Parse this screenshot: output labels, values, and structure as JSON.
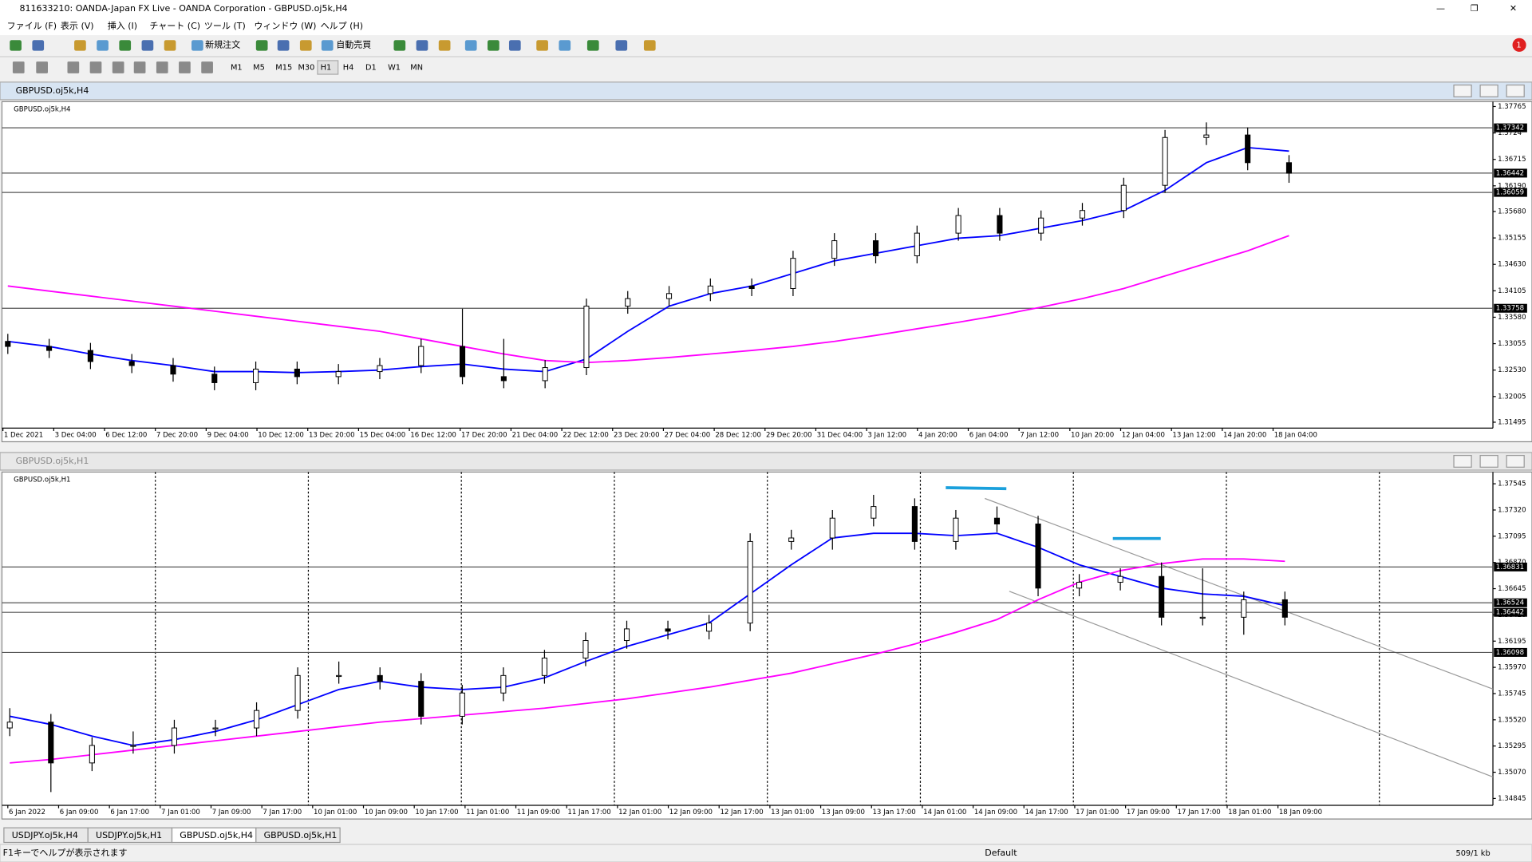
{
  "window": {
    "title": "811633210: OANDA-Japan FX Live - OANDA Corporation - GBPUSD.oj5k,H4"
  },
  "menu": [
    "ファイル (F)",
    "表示 (V)",
    "挿入 (I)",
    "チャート (C)",
    "ツール (T)",
    "ウィンドウ (W)",
    "ヘルプ (H)"
  ],
  "toolbar": {
    "new_order": "新規注文",
    "auto_trading": "自動売買",
    "timeframes": [
      "M1",
      "M5",
      "M15",
      "M30",
      "H1",
      "H4",
      "D1",
      "W1",
      "MN"
    ]
  },
  "chart_data": [
    {
      "type": "candlestick",
      "window_title": "GBPUSD.oj5k,H4",
      "title": "GBPUSD.oj5k,H4",
      "ylim": [
        1.31495,
        1.37765
      ],
      "yticks": [
        1.37765,
        1.3724,
        {
          "value": 1.36715,
          "label": "1.36715"
        },
        {
          "value": 1.3619,
          "label": "1.36190"
        },
        {
          "value": 1.3568,
          "label": "1.35680"
        },
        1.35155,
        {
          "value": 1.3463,
          "label": "1.34630"
        },
        1.34105,
        {
          "value": 1.3358,
          "label": "1.33580"
        },
        1.33055,
        {
          "value": 1.3253,
          "label": "1.32530"
        },
        1.32005,
        1.31495
      ],
      "price_lines": [
        1.37342,
        1.36442,
        1.36059,
        1.33758
      ],
      "x_labels": [
        "1 Dec 2021",
        "3 Dec 04:00",
        "6 Dec 12:00",
        "7 Dec 20:00",
        "9 Dec 04:00",
        "10 Dec 12:00",
        "13 Dec 20:00",
        "15 Dec 04:00",
        "16 Dec 12:00",
        "17 Dec 20:00",
        "21 Dec 04:00",
        "22 Dec 12:00",
        "23 Dec 20:00",
        "27 Dec 04:00",
        "28 Dec 12:00",
        "29 Dec 20:00",
        "31 Dec 04:00",
        "3 Jan 12:00",
        "4 Jan 20:00",
        "6 Jan 04:00",
        "7 Jan 12:00",
        "10 Jan 20:00",
        "12 Jan 04:00",
        "13 Jan 12:00",
        "14 Jan 20:00",
        "18 Jan 04:00"
      ],
      "open": [
        1.331,
        1.33,
        1.3292,
        1.327,
        1.3262,
        1.3245,
        1.3228,
        1.3255,
        1.324,
        1.325,
        1.3262,
        1.33,
        1.324,
        1.3232,
        1.3258,
        1.338,
        1.3395,
        1.3405,
        1.342,
        1.3415,
        1.3475,
        1.351,
        1.348,
        1.3525,
        1.356,
        1.3525,
        1.3555,
        1.357,
        1.362,
        1.3715,
        1.372,
        1.3665
      ],
      "high": [
        1.3325,
        1.3315,
        1.3307,
        1.3285,
        1.3277,
        1.326,
        1.327,
        1.327,
        1.3265,
        1.3277,
        1.3315,
        1.3375,
        1.3315,
        1.3273,
        1.3395,
        1.341,
        1.342,
        1.3435,
        1.3435,
        1.349,
        1.3525,
        1.3525,
        1.354,
        1.3575,
        1.3575,
        1.357,
        1.3585,
        1.3635,
        1.373,
        1.3745,
        1.3735,
        1.368
      ],
      "low": [
        1.3285,
        1.3277,
        1.3255,
        1.3247,
        1.323,
        1.3213,
        1.3213,
        1.3225,
        1.3225,
        1.3235,
        1.3247,
        1.3225,
        1.3217,
        1.3217,
        1.3243,
        1.3365,
        1.338,
        1.339,
        1.34,
        1.34,
        1.346,
        1.3465,
        1.3465,
        1.351,
        1.351,
        1.351,
        1.354,
        1.3555,
        1.3605,
        1.37,
        1.365,
        1.3625
      ],
      "close": [
        1.33,
        1.3292,
        1.327,
        1.3262,
        1.3245,
        1.3228,
        1.3255,
        1.324,
        1.325,
        1.3262,
        1.33,
        1.324,
        1.3232,
        1.3258,
        1.338,
        1.3395,
        1.3405,
        1.342,
        1.3415,
        1.3475,
        1.351,
        1.348,
        1.3525,
        1.356,
        1.3525,
        1.3555,
        1.357,
        1.362,
        1.3715,
        1.372,
        1.3665,
        1.3644
      ],
      "ma_lines": [
        {
          "color": "#0000ff",
          "values": [
            1.331,
            1.33,
            1.3285,
            1.3272,
            1.3262,
            1.325,
            1.325,
            1.3248,
            1.325,
            1.3253,
            1.326,
            1.3265,
            1.3255,
            1.325,
            1.3275,
            1.333,
            1.338,
            1.3405,
            1.342,
            1.3445,
            1.347,
            1.3485,
            1.35,
            1.3515,
            1.352,
            1.3535,
            1.355,
            1.357,
            1.361,
            1.3665,
            1.3695,
            1.3688
          ]
        },
        {
          "color": "#ff00ff",
          "values": [
            1.342,
            1.341,
            1.34,
            1.339,
            1.338,
            1.337,
            1.336,
            1.335,
            1.334,
            1.333,
            1.3315,
            1.33,
            1.3285,
            1.3272,
            1.3268,
            1.3272,
            1.3278,
            1.3285,
            1.3292,
            1.33,
            1.331,
            1.3322,
            1.3335,
            1.3348,
            1.3362,
            1.3378,
            1.3395,
            1.3415,
            1.344,
            1.3465,
            1.349,
            1.352
          ]
        }
      ]
    },
    {
      "type": "candlestick",
      "window_title": "GBPUSD.oj5k,H1",
      "title": "GBPUSD.oj5k,H1",
      "ylim": [
        1.34845,
        1.37545
      ],
      "yticks": [
        1.37545,
        {
          "value": 1.3732,
          "label": "1.37320"
        },
        1.37095,
        {
          "value": 1.3687,
          "label": "1.36870"
        },
        1.36645,
        {
          "value": 1.3642,
          "label": "1.36420"
        },
        1.36195,
        {
          "value": 1.3597,
          "label": "1.35970"
        },
        1.35745,
        {
          "value": 1.3552,
          "label": "1.35520"
        },
        1.35295,
        {
          "value": 1.3507,
          "label": "1.35070"
        },
        1.34845
      ],
      "price_lines": [
        1.36831,
        1.36524,
        1.36442,
        1.36098
      ],
      "x_labels": [
        "6 Jan 2022",
        "6 Jan 09:00",
        "6 Jan 17:00",
        "7 Jan 01:00",
        "7 Jan 09:00",
        "7 Jan 17:00",
        "10 Jan 01:00",
        "10 Jan 09:00",
        "10 Jan 17:00",
        "11 Jan 01:00",
        "11 Jan 09:00",
        "11 Jan 17:00",
        "12 Jan 01:00",
        "12 Jan 09:00",
        "12 Jan 17:00",
        "13 Jan 01:00",
        "13 Jan 09:00",
        "13 Jan 17:00",
        "14 Jan 01:00",
        "14 Jan 09:00",
        "14 Jan 17:00",
        "17 Jan 01:00",
        "17 Jan 09:00",
        "17 Jan 17:00",
        "18 Jan 01:00",
        "18 Jan 09:00"
      ],
      "open": [
        1.3545,
        1.355,
        1.3515,
        1.353,
        1.353,
        1.3545,
        1.3545,
        1.356,
        1.359,
        1.359,
        1.3585,
        1.3555,
        1.3575,
        1.359,
        1.3605,
        1.362,
        1.363,
        1.3628,
        1.3635,
        1.3705,
        1.3708,
        1.3725,
        1.3735,
        1.3705,
        1.3725,
        1.372,
        1.3665,
        1.367,
        1.3675,
        1.364,
        1.364,
        1.3655
      ],
      "high": [
        1.3562,
        1.3557,
        1.3537,
        1.3542,
        1.3552,
        1.3552,
        1.3567,
        1.3597,
        1.3602,
        1.3597,
        1.3592,
        1.3582,
        1.3597,
        1.3612,
        1.3627,
        1.3637,
        1.3637,
        1.3642,
        1.3712,
        1.3715,
        1.3732,
        1.3745,
        1.3742,
        1.3732,
        1.3735,
        1.3727,
        1.3677,
        1.3682,
        1.3687,
        1.3682,
        1.3662,
        1.3662
      ],
      "low": [
        1.3538,
        1.349,
        1.3508,
        1.3523,
        1.3523,
        1.3538,
        1.3538,
        1.3553,
        1.3583,
        1.3578,
        1.3548,
        1.3548,
        1.3568,
        1.3583,
        1.3598,
        1.3613,
        1.3621,
        1.3621,
        1.3628,
        1.3698,
        1.3698,
        1.3718,
        1.3698,
        1.3698,
        1.3713,
        1.3658,
        1.3658,
        1.3663,
        1.3633,
        1.3633,
        1.3625,
        1.3633
      ],
      "close": [
        1.355,
        1.3515,
        1.353,
        1.353,
        1.3545,
        1.3545,
        1.356,
        1.359,
        1.359,
        1.3585,
        1.3555,
        1.3575,
        1.359,
        1.3605,
        1.362,
        1.363,
        1.3628,
        1.3635,
        1.3705,
        1.3708,
        1.3725,
        1.3735,
        1.3705,
        1.3725,
        1.372,
        1.3665,
        1.367,
        1.3675,
        1.364,
        1.364,
        1.3655,
        1.364
      ],
      "ma_lines": [
        {
          "color": "#0000ff",
          "values": [
            1.3555,
            1.3548,
            1.3538,
            1.353,
            1.3535,
            1.3542,
            1.3552,
            1.3565,
            1.3578,
            1.3585,
            1.358,
            1.3578,
            1.358,
            1.3588,
            1.3602,
            1.3615,
            1.3625,
            1.3635,
            1.366,
            1.3685,
            1.3708,
            1.3712,
            1.3712,
            1.371,
            1.3712,
            1.37,
            1.3685,
            1.3675,
            1.3665,
            1.366,
            1.3658,
            1.365
          ]
        },
        {
          "color": "#ff00ff",
          "values": [
            1.3515,
            1.3518,
            1.3522,
            1.3526,
            1.353,
            1.3534,
            1.3538,
            1.3542,
            1.3546,
            1.355,
            1.3553,
            1.3556,
            1.3559,
            1.3562,
            1.3566,
            1.357,
            1.3575,
            1.358,
            1.3586,
            1.3592,
            1.36,
            1.3608,
            1.3617,
            1.3627,
            1.3638,
            1.3655,
            1.367,
            1.368,
            1.3686,
            1.369,
            1.369,
            1.3688
          ]
        }
      ]
    }
  ],
  "tabs": [
    "USDJPY.oj5k,H4",
    "USDJPY.oj5k,H1",
    "GBPUSD.oj5k,H4",
    "GBPUSD.oj5k,H1"
  ],
  "status": {
    "help": "F1キーでヘルプが表示されます",
    "profile": "Default",
    "traffic": "509/1 kb"
  }
}
